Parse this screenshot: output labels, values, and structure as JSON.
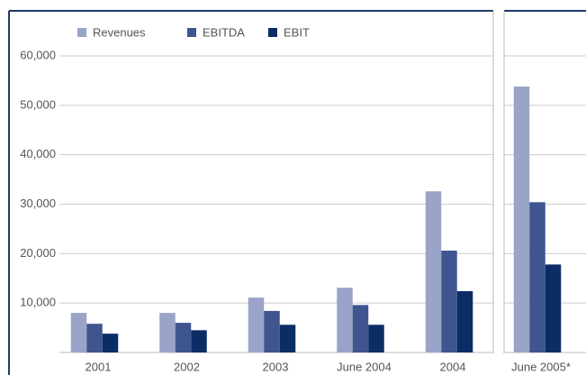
{
  "chart_data": {
    "type": "bar",
    "categories": [
      "2001",
      "2002",
      "2003",
      "June 2004",
      "2004",
      "June 2005*"
    ],
    "series": [
      {
        "name": "Revenues",
        "color": "#9aa3c8",
        "values": [
          8000,
          8000,
          11100,
          13100,
          32600,
          53800
        ]
      },
      {
        "name": "EBITDA",
        "color": "#3f5590",
        "values": [
          5800,
          6000,
          8400,
          9600,
          20600,
          30400
        ]
      },
      {
        "name": "EBIT",
        "color": "#0b2d66",
        "values": [
          3800,
          4500,
          5600,
          5600,
          12400,
          17800
        ]
      }
    ],
    "ylim": [
      0,
      60000
    ],
    "yticks": [
      {
        "value": 10000,
        "label": "10,000"
      },
      {
        "value": 20000,
        "label": "20,000"
      },
      {
        "value": 30000,
        "label": "30,000"
      },
      {
        "value": 40000,
        "label": "40,000"
      },
      {
        "value": 50000,
        "label": "50,000"
      },
      {
        "value": 60000,
        "label": "60,000"
      }
    ],
    "grid": true
  }
}
